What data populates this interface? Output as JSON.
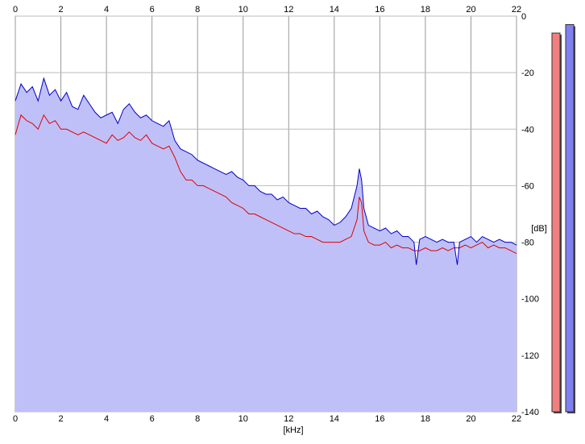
{
  "chart_data": {
    "type": "line",
    "xlabel": "[kHz]",
    "ylabel": "[dB]",
    "xlim": [
      0,
      22
    ],
    "ylim": [
      -140,
      0
    ],
    "x_ticks": [
      "0",
      "2",
      "4",
      "6",
      "8",
      "10",
      "12",
      "14",
      "16",
      "18",
      "20",
      "22"
    ],
    "y_ticks": [
      "0",
      "-20",
      "-40",
      "-60",
      "-80",
      "-100",
      "-120",
      "-140"
    ],
    "grid": true,
    "series": [
      {
        "color": "#0000cc",
        "x": [
          0,
          0.25,
          0.5,
          0.75,
          1,
          1.25,
          1.5,
          1.75,
          2,
          2.25,
          2.5,
          2.75,
          3,
          3.25,
          3.5,
          3.75,
          4,
          4.25,
          4.5,
          4.75,
          5,
          5.25,
          5.5,
          5.75,
          6,
          6.25,
          6.5,
          6.75,
          7,
          7.25,
          7.5,
          7.75,
          8,
          8.25,
          8.5,
          8.75,
          9,
          9.25,
          9.5,
          9.75,
          10,
          10.25,
          10.5,
          10.75,
          11,
          11.25,
          11.5,
          11.75,
          12,
          12.25,
          12.5,
          12.75,
          13,
          13.25,
          13.5,
          13.75,
          14,
          14.25,
          14.5,
          14.75,
          15,
          15.1,
          15.2,
          15.3,
          15.5,
          15.75,
          16,
          16.25,
          16.5,
          16.75,
          17,
          17.25,
          17.5,
          17.6,
          17.75,
          18,
          18.25,
          18.5,
          18.75,
          19,
          19.25,
          19.4,
          19.5,
          19.75,
          20,
          20.25,
          20.5,
          20.75,
          21,
          21.25,
          21.5,
          21.75,
          22
        ],
        "y": [
          -30,
          -24,
          -27,
          -25,
          -30,
          -22,
          -28,
          -26,
          -30,
          -27,
          -32,
          -33,
          -28,
          -31,
          -34,
          -36,
          -35,
          -34,
          -38,
          -33,
          -31,
          -34,
          -36,
          -35,
          -37,
          -38,
          -39,
          -37,
          -44,
          -47,
          -48,
          -49,
          -51,
          -52,
          -53,
          -54,
          -55,
          -56,
          -55,
          -57,
          -58,
          -60,
          -60,
          -62,
          -63,
          -63,
          -65,
          -64,
          -66,
          -67,
          -68,
          -68,
          -70,
          -69,
          -71,
          -72,
          -74,
          -73,
          -71,
          -68,
          -60,
          -54,
          -58,
          -68,
          -74,
          -75,
          -76,
          -75,
          -77,
          -76,
          -78,
          -78,
          -80,
          -88,
          -79,
          -78,
          -79,
          -80,
          -79,
          -80,
          -80,
          -88,
          -80,
          -79,
          -78,
          -80,
          -78,
          -79,
          -80,
          -79,
          -80,
          -80,
          -81
        ]
      },
      {
        "color": "#dd0000",
        "x": [
          0,
          0.25,
          0.5,
          0.75,
          1,
          1.25,
          1.5,
          1.75,
          2,
          2.25,
          2.5,
          2.75,
          3,
          3.25,
          3.5,
          3.75,
          4,
          4.25,
          4.5,
          4.75,
          5,
          5.25,
          5.5,
          5.75,
          6,
          6.25,
          6.5,
          6.75,
          7,
          7.25,
          7.5,
          7.75,
          8,
          8.25,
          8.5,
          8.75,
          9,
          9.25,
          9.5,
          9.75,
          10,
          10.25,
          10.5,
          10.75,
          11,
          11.25,
          11.5,
          11.75,
          12,
          12.25,
          12.5,
          12.75,
          13,
          13.25,
          13.5,
          13.75,
          14,
          14.25,
          14.5,
          14.75,
          15,
          15.1,
          15.2,
          15.3,
          15.5,
          15.75,
          16,
          16.25,
          16.5,
          16.75,
          17,
          17.25,
          17.5,
          17.75,
          18,
          18.25,
          18.5,
          18.75,
          19,
          19.25,
          19.5,
          19.75,
          20,
          20.25,
          20.5,
          20.75,
          21,
          21.25,
          21.5,
          21.75,
          22
        ],
        "y": [
          -42,
          -35,
          -37,
          -38,
          -40,
          -35,
          -38,
          -37,
          -40,
          -40,
          -41,
          -42,
          -41,
          -42,
          -43,
          -44,
          -45,
          -42,
          -44,
          -43,
          -41,
          -43,
          -44,
          -42,
          -45,
          -46,
          -47,
          -46,
          -50,
          -55,
          -58,
          -58,
          -60,
          -60,
          -61,
          -62,
          -63,
          -64,
          -66,
          -67,
          -68,
          -70,
          -70,
          -71,
          -72,
          -73,
          -74,
          -75,
          -76,
          -77,
          -77,
          -78,
          -78,
          -79,
          -80,
          -80,
          -80,
          -80,
          -79,
          -78,
          -72,
          -64,
          -66,
          -76,
          -80,
          -81,
          -81,
          -80,
          -82,
          -81,
          -82,
          -82,
          -83,
          -83,
          -82,
          -83,
          -83,
          -82,
          -83,
          -82,
          -82,
          -81,
          -82,
          -81,
          -80,
          -82,
          -81,
          -82,
          -82,
          -83,
          -84
        ]
      }
    ],
    "level_meters": [
      {
        "color": "#f08080",
        "level_db": -6
      },
      {
        "color": "#8080f0",
        "level_db": -3
      }
    ]
  }
}
